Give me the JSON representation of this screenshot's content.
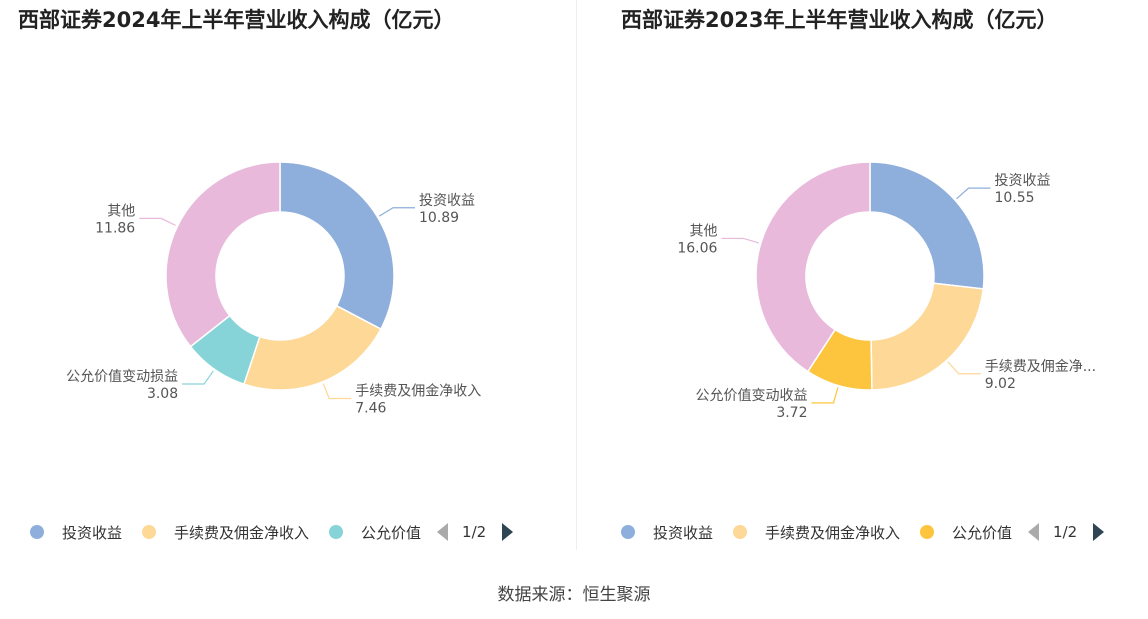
{
  "charts": [
    {
      "title": "西部证券2024年上半年营业收入构成（亿元）",
      "legend": {
        "items": [
          {
            "label": "投资收益",
            "color": "#8eaedb"
          },
          {
            "label": "手续费及佣金净收入",
            "color": "#fdd897"
          },
          {
            "label": "公允价值",
            "color": "#87d4d8"
          }
        ],
        "page": "1/2"
      }
    },
    {
      "title": "西部证券2023年上半年营业收入构成（亿元）",
      "legend": {
        "items": [
          {
            "label": "投资收益",
            "color": "#8eaedb"
          },
          {
            "label": "手续费及佣金净收入",
            "color": "#fdd897"
          },
          {
            "label": "公允价值",
            "color": "#fdc53d"
          }
        ],
        "page": "1/2"
      }
    }
  ],
  "chart_data": [
    {
      "type": "pie",
      "variant": "donut",
      "title": "西部证券2024年上半年营业收入构成（亿元）",
      "slices": [
        {
          "label": "投资收益",
          "value": 10.89,
          "value_text": "10.89",
          "color": "#8eaedb"
        },
        {
          "label": "手续费及佣金净收入",
          "value": 7.46,
          "value_text": "7.46",
          "color": "#fdd897"
        },
        {
          "label": "公允价值变动损益",
          "value": 3.08,
          "value_text": "3.08",
          "color": "#87d4d8"
        },
        {
          "label": "其他",
          "value": 11.86,
          "value_text": "11.86",
          "color": "#e8b9da"
        }
      ]
    },
    {
      "type": "pie",
      "variant": "donut",
      "title": "西部证券2023年上半年营业收入构成（亿元）",
      "slices": [
        {
          "label": "投资收益",
          "value": 10.55,
          "value_text": "10.55",
          "color": "#8eaedb"
        },
        {
          "label": "手续费及佣金净...",
          "value": 9.02,
          "value_text": "9.02",
          "color": "#fdd897"
        },
        {
          "label": "公允价值变动收益",
          "value": 3.72,
          "value_text": "3.72",
          "color": "#fdc53d"
        },
        {
          "label": "其他",
          "value": 16.06,
          "value_text": "16.06",
          "color": "#e8b9da"
        }
      ]
    }
  ],
  "source": "数据来源：恒生聚源"
}
